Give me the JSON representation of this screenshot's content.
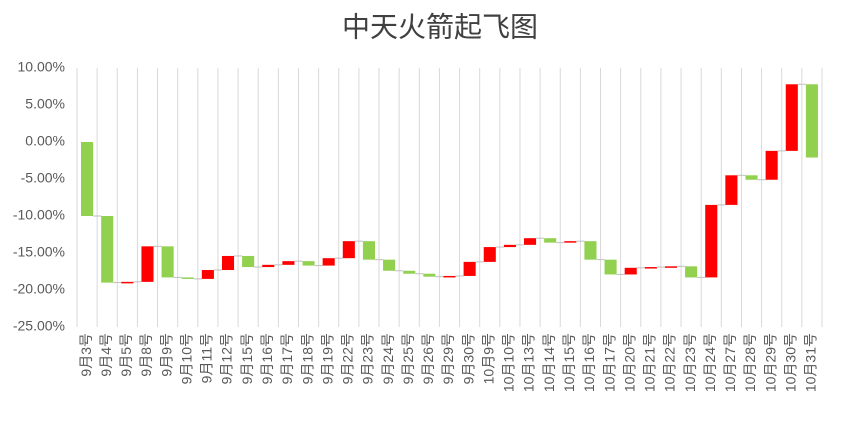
{
  "chart_data": {
    "type": "waterfall",
    "title": "中天火箭起飞图",
    "categories": [
      "9月3号",
      "9月4号",
      "9月5号",
      "9月8号",
      "9月9号",
      "9月10号",
      "9月11号",
      "9月12号",
      "9月15号",
      "9月16号",
      "9月17号",
      "9月18号",
      "9月19号",
      "9月22号",
      "9月23号",
      "9月24号",
      "9月25号",
      "9月26号",
      "9月29号",
      "9月30号",
      "10月9号",
      "10月10号",
      "10月13号",
      "10月14号",
      "10月15号",
      "10月16号",
      "10月17号",
      "10月20号",
      "10月21号",
      "10月22号",
      "10月23号",
      "10月24号",
      "10月27号",
      "10月28号",
      "10月29号",
      "10月30号",
      "10月31号"
    ],
    "values": [
      -10.0,
      -9.0,
      0.1,
      4.8,
      -4.2,
      -0.2,
      1.2,
      1.9,
      -1.5,
      0.3,
      0.5,
      -0.6,
      1.0,
      2.3,
      -2.5,
      -1.5,
      -0.4,
      -0.4,
      0.1,
      1.9,
      2.0,
      0.3,
      0.9,
      -0.6,
      0.2,
      -2.5,
      -2.0,
      0.9,
      0.1,
      0.1,
      -1.5,
      9.8,
      4.0,
      -0.6,
      3.9,
      9.0,
      -9.9
    ],
    "up_color": "#ff0000",
    "down_color": "#92d050",
    "ylim": [
      -25,
      10
    ],
    "yticks": [
      {
        "value": -25,
        "label": "-25.00%"
      },
      {
        "value": -20,
        "label": "-20.00%"
      },
      {
        "value": -15,
        "label": "-15.00%"
      },
      {
        "value": -10,
        "label": "-10.00%"
      },
      {
        "value": -5,
        "label": "-5.00%"
      },
      {
        "value": 0,
        "label": "0.00%"
      },
      {
        "value": 5,
        "label": "5.00%"
      },
      {
        "value": 10,
        "label": "10.00%"
      }
    ],
    "grid": "x"
  }
}
